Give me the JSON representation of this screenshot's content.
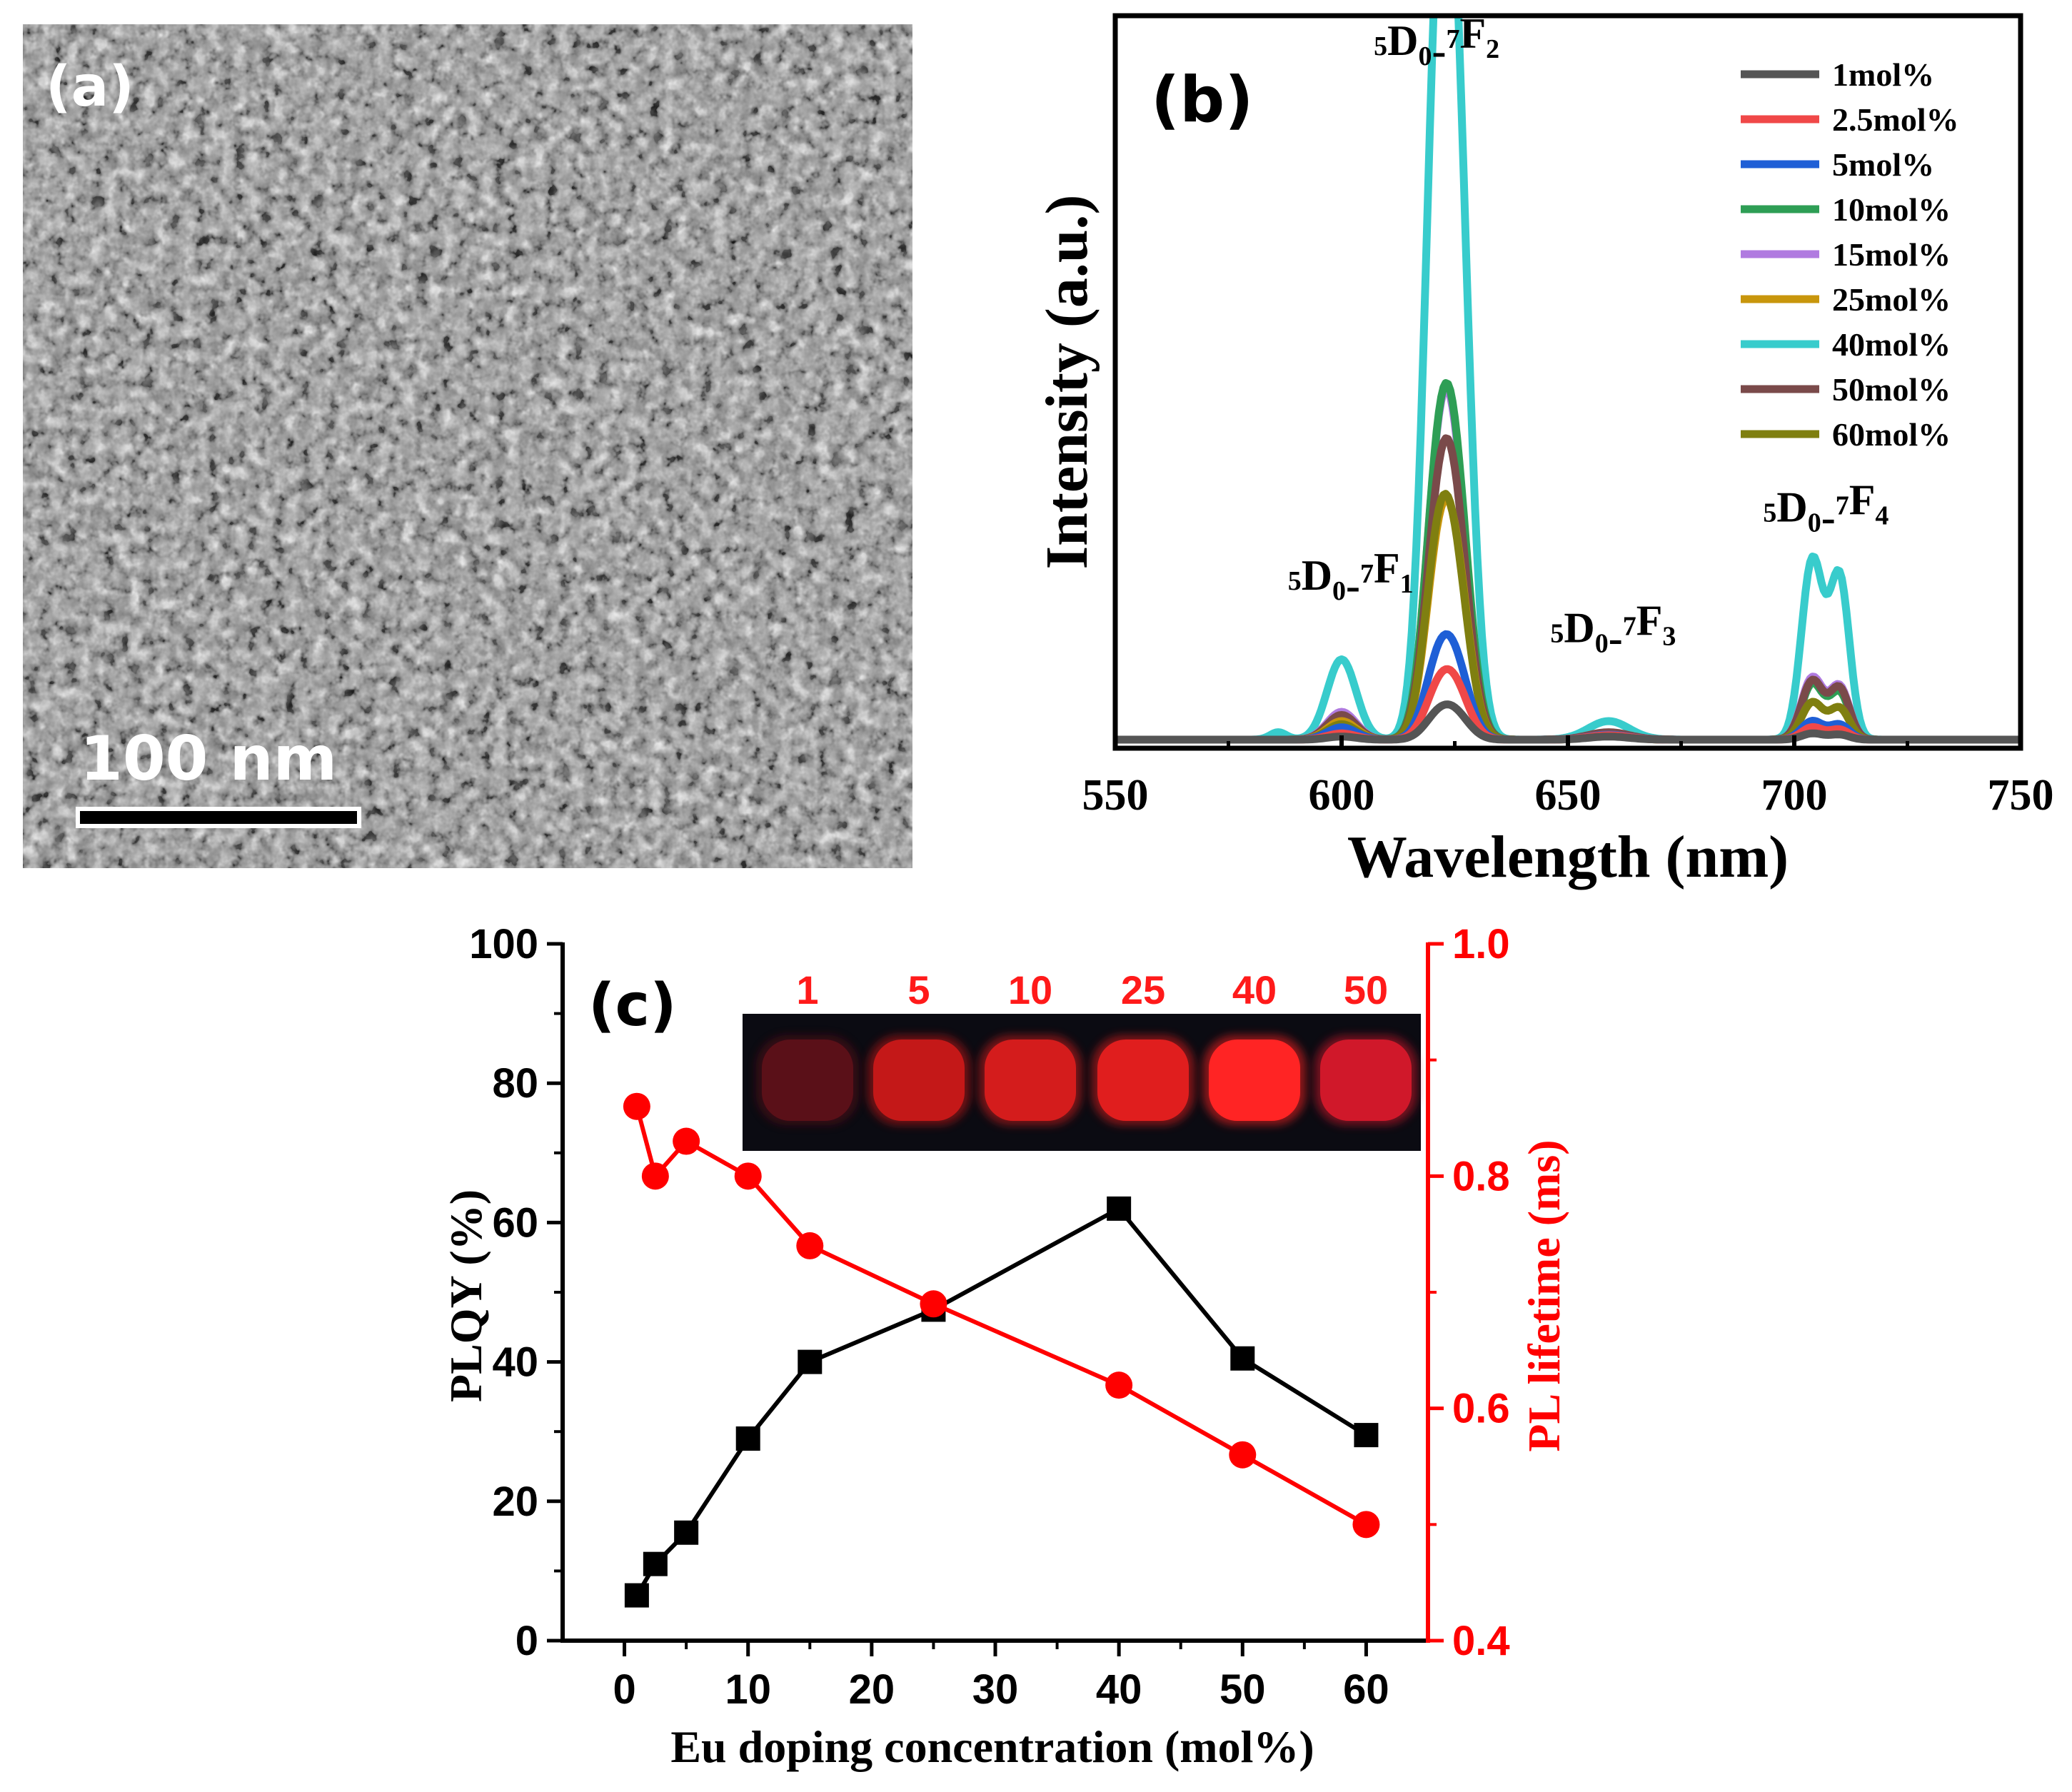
{
  "chart_data": [
    {
      "id": "a",
      "type": "image",
      "panel_label": "(a)",
      "description": "TEM micrograph of nanoparticles",
      "scale_bar_label": "100 nm"
    },
    {
      "id": "b",
      "type": "line",
      "panel_label": "(b)",
      "xlabel": "Wavelength (nm)",
      "ylabel": "Intensity (a.u.)",
      "xlim": [
        550,
        750
      ],
      "ylim": [
        0,
        1.0
      ],
      "xticks": [
        550,
        600,
        650,
        700,
        750
      ],
      "grid": false,
      "legend_position": "top-right",
      "peaks": [
        {
          "id": "p1",
          "center": 600,
          "width": 3.2
        },
        {
          "id": "p2a",
          "center": 621,
          "width": 3.0
        },
        {
          "id": "p2b",
          "center": 625,
          "width": 3.2
        },
        {
          "id": "p3",
          "center": 659,
          "width": 4.5
        },
        {
          "id": "p4a",
          "center": 704,
          "width": 2.4
        },
        {
          "id": "p4b",
          "center": 710,
          "width": 2.2
        },
        {
          "id": "p0",
          "center": 586,
          "width": 1.8
        }
      ],
      "annotations": [
        {
          "label": "5D0-7F1",
          "sup1": "5",
          "main1": "D",
          "sub1": "0",
          "sup2": "7",
          "main2": "F",
          "sub2": "1",
          "x": 602,
          "y": 0.215
        },
        {
          "label": "5D0-7F2",
          "sup1": "5",
          "main1": "D",
          "sub1": "0",
          "sup2": "7",
          "main2": "F",
          "sub2": "2",
          "x": 621,
          "y": 1.08
        },
        {
          "label": "5D0-7F3",
          "sup1": "5",
          "main1": "D",
          "sub1": "0",
          "sup2": "7",
          "main2": "F",
          "sub2": "3",
          "x": 660,
          "y": 0.13
        },
        {
          "label": "5D0-7F4",
          "sup1": "5",
          "main1": "D",
          "sub1": "0",
          "sup2": "7",
          "main2": "F",
          "sub2": "4",
          "x": 707,
          "y": 0.325
        }
      ],
      "series": [
        {
          "name": "1mol%",
          "color": "#555555",
          "amps": {
            "p1": 0.005,
            "p2a": 0.03,
            "p2b": 0.04,
            "p3": 0.005,
            "p4a": 0.01,
            "p4b": 0.008,
            "p0": 0.0
          }
        },
        {
          "name": "2.5mol%",
          "color": "#f04848",
          "amps": {
            "p1": 0.01,
            "p2a": 0.06,
            "p2b": 0.08,
            "p3": 0.007,
            "p4a": 0.02,
            "p4b": 0.016,
            "p0": 0.0
          }
        },
        {
          "name": "5mol%",
          "color": "#1f5fd6",
          "amps": {
            "p1": 0.02,
            "p2a": 0.095,
            "p2b": 0.115,
            "p3": 0.008,
            "p4a": 0.03,
            "p4b": 0.024,
            "p0": 0.0
          }
        },
        {
          "name": "10mol%",
          "color": "#2e9e55",
          "amps": {
            "p1": 0.035,
            "p2a": 0.32,
            "p2b": 0.39,
            "p3": 0.01,
            "p4a": 0.09,
            "p4b": 0.075,
            "p0": 0.0
          }
        },
        {
          "name": "15mol%",
          "color": "#b07ae0",
          "amps": {
            "p1": 0.045,
            "p2a": 0.32,
            "p2b": 0.38,
            "p3": 0.011,
            "p4a": 0.1,
            "p4b": 0.085,
            "p0": 0.0
          }
        },
        {
          "name": "25mol%",
          "color": "#c8960c",
          "amps": {
            "p1": 0.03,
            "p2a": 0.22,
            "p2b": 0.26,
            "p3": 0.008,
            "p4a": 0.06,
            "p4b": 0.05,
            "p0": 0.0
          }
        },
        {
          "name": "40mol%",
          "color": "#38cccc",
          "amps": {
            "p1": 0.13,
            "p2a": 0.87,
            "p2b": 0.96,
            "p3": 0.03,
            "p4a": 0.29,
            "p4b": 0.26,
            "p0": 0.012
          }
        },
        {
          "name": "50mol%",
          "color": "#7a4a4a",
          "amps": {
            "p1": 0.04,
            "p2a": 0.27,
            "p2b": 0.33,
            "p3": 0.012,
            "p4a": 0.095,
            "p4b": 0.082,
            "p0": 0.0
          }
        },
        {
          "name": "60mol%",
          "color": "#7f7f10",
          "amps": {
            "p1": 0.025,
            "p2a": 0.24,
            "p2b": 0.25,
            "p3": 0.006,
            "p4a": 0.06,
            "p4b": 0.05,
            "p0": 0.0
          }
        }
      ]
    },
    {
      "id": "c",
      "type": "scatter-line-dual-axis",
      "panel_label": "(c)",
      "xlabel": "Eu doping concentration (mol%)",
      "xlim": [
        -5,
        65
      ],
      "xticks": [
        0,
        10,
        20,
        30,
        40,
        50,
        60
      ],
      "left_axis": {
        "label": "PLQY (%)",
        "ylim": [
          0,
          100
        ],
        "ticks": [
          0,
          20,
          40,
          60,
          80,
          100
        ],
        "color": "#000000"
      },
      "right_axis": {
        "label": "PL lifetime (ms)",
        "ylim": [
          0.4,
          1.0
        ],
        "ticks": [
          "0.4",
          "0.6",
          "0.8",
          "1.0"
        ],
        "color": "#ff0000"
      },
      "series": [
        {
          "name": "PLQY",
          "axis": "left",
          "marker": "square",
          "color": "#000000",
          "x": [
            1,
            2.5,
            5,
            10,
            15,
            25,
            40,
            50,
            60
          ],
          "y": [
            6.5,
            11,
            15.5,
            29,
            40,
            47.5,
            62,
            40.5,
            29.5
          ]
        },
        {
          "name": "PL lifetime",
          "axis": "right",
          "marker": "circle",
          "color": "#ff0000",
          "x": [
            1,
            2.5,
            5,
            10,
            15,
            25,
            40,
            50,
            60
          ],
          "y": [
            0.86,
            0.8,
            0.83,
            0.8,
            0.74,
            0.69,
            0.62,
            0.56,
            0.5
          ]
        }
      ],
      "inset": {
        "description": "photo of doped samples glowing red under UV light",
        "labels": [
          "1",
          "5",
          "10",
          "25",
          "40",
          "50"
        ],
        "label_color": "#ff1a1a",
        "glow_colors": [
          "#5a1018",
          "#c41818",
          "#d41c1c",
          "#e01e1e",
          "#ff2424",
          "#d0182a"
        ]
      }
    }
  ]
}
